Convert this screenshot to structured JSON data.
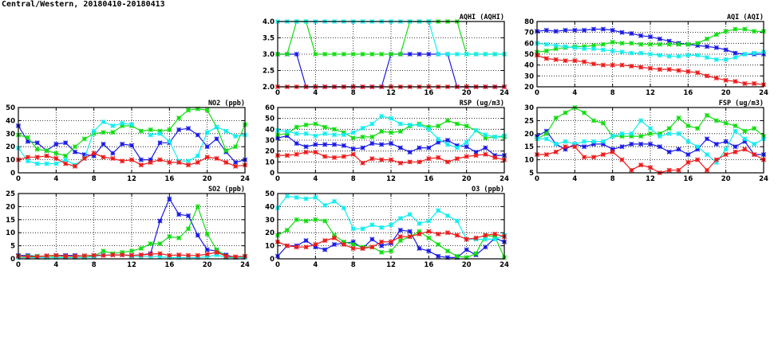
{
  "title": "Central/Western, 20180410-20180413",
  "series_colors": [
    "#1a1ae6",
    "#11dd11",
    "#11eeee",
    "#ee1a1a"
  ],
  "chart_data": [
    {
      "id": "aqhi",
      "type": "line",
      "title": "AQHI (AQHI)",
      "xlabel": "",
      "ylabel": "",
      "xlim": [
        0,
        24
      ],
      "ylim": [
        2,
        4
      ],
      "xticks": [
        0,
        4,
        8,
        12,
        16,
        20,
        24
      ],
      "yticks": [
        2.0,
        2.5,
        3.0,
        3.5,
        4.0
      ],
      "ytick_labels": [
        "2.0",
        "2.5",
        "3.0",
        "3.5",
        "4.0"
      ],
      "grid": true,
      "x": [
        0,
        1,
        2,
        3,
        4,
        5,
        6,
        7,
        8,
        9,
        10,
        11,
        12,
        13,
        14,
        15,
        16,
        17,
        18,
        19,
        20,
        21,
        22,
        23,
        24
      ],
      "series": [
        {
          "color": "#1a1ae6",
          "values": [
            3,
            3,
            3,
            2,
            2,
            2,
            2,
            2,
            2,
            2,
            2,
            2,
            3,
            3,
            3,
            3,
            3,
            3,
            3,
            2,
            2,
            2,
            2,
            2,
            2
          ]
        },
        {
          "color": "#11dd11",
          "values": [
            3,
            3,
            4,
            4,
            3,
            3,
            3,
            3,
            3,
            3,
            3,
            3,
            3,
            3,
            4,
            4,
            4,
            4,
            4,
            4,
            3,
            3,
            3,
            3,
            3
          ]
        },
        {
          "color": "#11eeee",
          "values": [
            4,
            4,
            4,
            4,
            4,
            4,
            4,
            4,
            4,
            4,
            4,
            4,
            4,
            4,
            4,
            4,
            4,
            3,
            3,
            3,
            3,
            3,
            3,
            3,
            3
          ]
        },
        {
          "color": "#ee1a1a",
          "values": [
            2,
            2,
            2,
            2,
            2,
            2,
            2,
            2,
            2,
            2,
            2,
            2,
            2,
            2,
            2,
            2,
            2,
            2,
            2,
            2,
            2,
            2,
            2,
            2,
            2
          ]
        }
      ]
    },
    {
      "id": "aqi",
      "type": "line",
      "title": "AQI (AQI)",
      "xlabel": "",
      "ylabel": "",
      "xlim": [
        0,
        24
      ],
      "ylim": [
        20,
        80
      ],
      "xticks": [
        0,
        4,
        8,
        12,
        16,
        20,
        24
      ],
      "yticks": [
        20,
        30,
        40,
        50,
        60,
        70,
        80
      ],
      "ytick_labels": [
        "20",
        "30",
        "40",
        "50",
        "60",
        "70",
        "80"
      ],
      "grid": true,
      "x": [
        0,
        1,
        2,
        3,
        4,
        5,
        6,
        7,
        8,
        9,
        10,
        11,
        12,
        13,
        14,
        15,
        16,
        17,
        18,
        19,
        20,
        21,
        22,
        23,
        24
      ],
      "series": [
        {
          "color": "#1a1ae6",
          "values": [
            71,
            72,
            71,
            72,
            72,
            72,
            73,
            73,
            72,
            70,
            69,
            67,
            66,
            64,
            62,
            60,
            59,
            58,
            57,
            56,
            54,
            51,
            50,
            50,
            50
          ]
        },
        {
          "color": "#11dd11",
          "values": [
            52,
            53,
            55,
            56,
            57,
            57,
            58,
            59,
            61,
            60,
            60,
            59,
            59,
            59,
            59,
            59,
            59,
            60,
            64,
            68,
            71,
            73,
            73,
            71,
            71
          ]
        },
        {
          "color": "#11eeee",
          "values": [
            60,
            59,
            58,
            57,
            56,
            55,
            55,
            54,
            53,
            52,
            51,
            51,
            50,
            49,
            48,
            48,
            49,
            49,
            47,
            45,
            45,
            47,
            50,
            51,
            52
          ]
        },
        {
          "color": "#ee1a1a",
          "values": [
            49,
            46,
            45,
            44,
            44,
            43,
            41,
            40,
            40,
            40,
            39,
            38,
            37,
            36,
            36,
            35,
            34,
            33,
            30,
            28,
            26,
            25,
            23,
            23,
            22
          ]
        }
      ]
    },
    {
      "id": "no2",
      "type": "line",
      "title": "NO2 (ppb)",
      "xlabel": "",
      "ylabel": "",
      "xlim": [
        0,
        24
      ],
      "ylim": [
        0,
        50
      ],
      "xticks": [
        0,
        4,
        8,
        12,
        16,
        20,
        24
      ],
      "yticks": [
        0,
        10,
        20,
        30,
        40,
        50
      ],
      "ytick_labels": [
        "0",
        "10",
        "20",
        "30",
        "40",
        "50"
      ],
      "grid": true,
      "x": [
        0,
        1,
        2,
        3,
        4,
        5,
        6,
        7,
        8,
        9,
        10,
        11,
        12,
        13,
        14,
        15,
        16,
        17,
        18,
        19,
        20,
        21,
        22,
        23,
        24
      ],
      "series": [
        {
          "color": "#1a1ae6",
          "values": [
            36,
            24,
            23,
            17,
            22,
            23,
            16,
            14,
            13,
            22,
            15,
            22,
            21,
            10,
            10,
            23,
            23,
            33,
            34,
            29,
            20,
            26,
            16,
            8,
            10
          ]
        },
        {
          "color": "#11dd11",
          "values": [
            29,
            27,
            18,
            17,
            15,
            13,
            20,
            26,
            30,
            31,
            31,
            36,
            36,
            32,
            33,
            32,
            33,
            42,
            48,
            49,
            48,
            35,
            17,
            20,
            37
          ]
        },
        {
          "color": "#11eeee",
          "values": [
            19,
            9,
            7,
            7,
            7,
            10,
            6,
            11,
            32,
            39,
            36,
            38,
            37,
            null,
            29,
            30,
            24,
            9,
            9,
            13,
            31,
            35,
            32,
            28,
            29
          ]
        },
        {
          "color": "#ee1a1a",
          "values": [
            10,
            12,
            12,
            13,
            11,
            7,
            5,
            11,
            15,
            12,
            11,
            9,
            10,
            6,
            8,
            10,
            8,
            8,
            6,
            8,
            12,
            11,
            8,
            5,
            6
          ]
        }
      ]
    },
    {
      "id": "rsp",
      "type": "line",
      "title": "RSP (ug/m3)",
      "xlabel": "",
      "ylabel": "",
      "xlim": [
        0,
        24
      ],
      "ylim": [
        0,
        60
      ],
      "xticks": [
        0,
        4,
        8,
        12,
        16,
        20,
        24
      ],
      "yticks": [
        0,
        10,
        20,
        30,
        40,
        50,
        60
      ],
      "ytick_labels": [
        "0",
        "10",
        "20",
        "30",
        "40",
        "50",
        "60"
      ],
      "grid": true,
      "x": [
        0,
        1,
        2,
        3,
        4,
        5,
        6,
        7,
        8,
        9,
        10,
        11,
        12,
        13,
        14,
        15,
        16,
        17,
        18,
        19,
        20,
        21,
        22,
        23,
        24
      ],
      "series": [
        {
          "color": "#1a1ae6",
          "values": [
            32,
            34,
            27,
            24,
            26,
            26,
            26,
            25,
            22,
            23,
            27,
            26,
            27,
            23,
            19,
            23,
            23,
            28,
            30,
            25,
            24,
            19,
            23,
            16,
            16
          ]
        },
        {
          "color": "#11dd11",
          "values": [
            35,
            36,
            42,
            44,
            45,
            42,
            40,
            37,
            32,
            33,
            33,
            38,
            37,
            38,
            43,
            45,
            42,
            43,
            48,
            45,
            43,
            39,
            32,
            33,
            33
          ]
        },
        {
          "color": "#11eeee",
          "values": [
            39,
            38,
            36,
            36,
            34,
            36,
            35,
            35,
            37,
            41,
            45,
            52,
            50,
            45,
            44,
            44,
            40,
            31,
            26,
            23,
            28,
            39,
            35,
            33,
            34
          ]
        },
        {
          "color": "#ee1a1a",
          "values": [
            16,
            16,
            17,
            19,
            19,
            15,
            14,
            15,
            17,
            9,
            13,
            12,
            12,
            9,
            10,
            10,
            13,
            14,
            10,
            13,
            15,
            16,
            17,
            14,
            12
          ]
        }
      ]
    },
    {
      "id": "fsp",
      "type": "line",
      "title": "FSP (ug/m3)",
      "xlabel": "",
      "ylabel": "",
      "xlim": [
        0,
        24
      ],
      "ylim": [
        5,
        30
      ],
      "xticks": [
        0,
        4,
        8,
        12,
        16,
        20,
        24
      ],
      "yticks": [
        5,
        10,
        15,
        20,
        25,
        30
      ],
      "ytick_labels": [
        "5",
        "10",
        "15",
        "20",
        "25",
        "30"
      ],
      "grid": true,
      "x": [
        0,
        1,
        2,
        3,
        4,
        5,
        6,
        7,
        8,
        9,
        10,
        11,
        12,
        13,
        14,
        15,
        16,
        17,
        18,
        19,
        20,
        21,
        22,
        23,
        24
      ],
      "series": [
        {
          "color": "#1a1ae6",
          "values": [
            19,
            21,
            16,
            14,
            16,
            15,
            16,
            16,
            14,
            15,
            16,
            16,
            16,
            15,
            13,
            14,
            12,
            14,
            18,
            16,
            17,
            15,
            17,
            12,
            12
          ]
        },
        {
          "color": "#11dd11",
          "values": [
            18,
            20,
            26,
            28,
            30,
            28,
            25,
            24,
            19,
            19,
            19,
            19,
            20,
            20,
            22,
            26,
            23,
            22,
            27,
            25,
            24,
            23,
            21,
            22,
            19
          ]
        },
        {
          "color": "#11eeee",
          "values": [
            18,
            18,
            16,
            17,
            16,
            17,
            17,
            17,
            19,
            20,
            20,
            25,
            22,
            19,
            20,
            20,
            17,
            15,
            12,
            9,
            14,
            21,
            18,
            16,
            18
          ]
        },
        {
          "color": "#ee1a1a",
          "values": [
            12,
            12,
            13,
            15,
            15,
            11,
            11,
            12,
            13,
            10,
            6,
            8,
            7,
            5,
            6,
            6,
            9,
            10,
            6,
            10,
            12,
            13,
            14,
            12,
            10
          ]
        }
      ]
    },
    {
      "id": "so2",
      "type": "line",
      "title": "SO2 (ppb)",
      "xlabel": "",
      "ylabel": "",
      "xlim": [
        0,
        24
      ],
      "ylim": [
        0,
        25
      ],
      "xticks": [
        0,
        4,
        8,
        12,
        16,
        20,
        24
      ],
      "yticks": [
        0,
        5,
        10,
        15,
        20,
        25
      ],
      "ytick_labels": [
        "0",
        "5",
        "10",
        "15",
        "20",
        "25"
      ],
      "grid": true,
      "x": [
        0,
        1,
        2,
        3,
        4,
        5,
        6,
        7,
        8,
        9,
        10,
        11,
        12,
        13,
        14,
        15,
        16,
        17,
        18,
        19,
        20,
        21,
        22,
        23,
        24
      ],
      "series": [
        {
          "color": "#1a1ae6",
          "values": [
            1.3,
            1.3,
            1,
            1,
            1.3,
            1.3,
            1.3,
            1,
            1.3,
            1.5,
            1.5,
            1.5,
            1.3,
            1.5,
            2,
            14.5,
            23,
            17,
            16.5,
            9,
            3.5,
            3,
            1.5,
            0.5,
            0.5
          ]
        },
        {
          "color": "#11dd11",
          "values": [
            1,
            1,
            1,
            1,
            1,
            1,
            1,
            1,
            1,
            3,
            2,
            2.5,
            3,
            4,
            5.8,
            5.8,
            8.5,
            8,
            11.5,
            20,
            9.5,
            3.5,
            1,
            0.5,
            1
          ]
        },
        {
          "color": "#11eeee",
          "values": [
            0.5,
            0.5,
            0.5,
            0.5,
            0.5,
            0.5,
            0.5,
            0.5,
            0.8,
            1.5,
            1.5,
            1.5,
            1,
            0.8,
            1,
            0.8,
            0.5,
            0.5,
            0.5,
            0.5,
            0.8,
            1.5,
            0.5,
            0.5,
            0.5
          ]
        },
        {
          "color": "#ee1a1a",
          "values": [
            1,
            0.8,
            0.8,
            1.2,
            1.3,
            1,
            1,
            1.2,
            1.3,
            1.3,
            1.5,
            1.5,
            1.3,
            1.5,
            1.8,
            2,
            1.3,
            1.5,
            1.3,
            1.3,
            1.8,
            2.5,
            1,
            0.8,
            1
          ]
        }
      ]
    },
    {
      "id": "o3",
      "type": "line",
      "title": "O3 (ppb)",
      "xlabel": "",
      "ylabel": "",
      "xlim": [
        0,
        24
      ],
      "ylim": [
        0,
        50
      ],
      "xticks": [
        0,
        4,
        8,
        12,
        16,
        20,
        24
      ],
      "yticks": [
        0,
        10,
        20,
        30,
        40,
        50
      ],
      "ytick_labels": [
        "0",
        "10",
        "20",
        "30",
        "40",
        "50"
      ],
      "grid": true,
      "x": [
        0,
        1,
        2,
        3,
        4,
        5,
        6,
        7,
        8,
        9,
        10,
        11,
        12,
        13,
        14,
        15,
        16,
        17,
        18,
        19,
        20,
        21,
        22,
        23,
        24
      ],
      "series": [
        {
          "color": "#1a1ae6",
          "values": [
            2,
            10,
            10,
            14,
            9,
            7,
            11,
            12,
            13,
            8,
            15,
            10,
            12,
            22,
            21,
            8,
            6,
            2,
            1,
            1,
            7,
            3,
            9,
            16,
            13
          ]
        },
        {
          "color": "#11dd11",
          "values": [
            18,
            22,
            30,
            29,
            30,
            29,
            18,
            13,
            11,
            9,
            9,
            5,
            6,
            14,
            17,
            21,
            16,
            11,
            6,
            2,
            1,
            4,
            18,
            17,
            1
          ]
        },
        {
          "color": "#11eeee",
          "values": [
            39,
            48,
            47,
            46,
            47,
            41,
            44,
            39,
            23,
            23,
            26,
            24,
            26,
            31,
            34,
            27,
            29,
            37,
            33,
            29,
            15,
            15,
            15,
            15,
            18
          ]
        },
        {
          "color": "#ee1a1a",
          "values": [
            13,
            10,
            9,
            9,
            11,
            14,
            16,
            11,
            8,
            8,
            9,
            13,
            13,
            17,
            17,
            19,
            21,
            19,
            20,
            18,
            15,
            16,
            18,
            19,
            17
          ]
        }
      ]
    }
  ]
}
